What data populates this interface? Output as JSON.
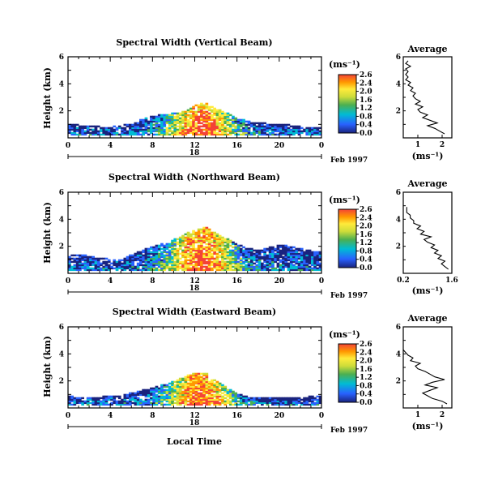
{
  "figure": {
    "xlabel": "Local Time",
    "date_label": "Feb 1997",
    "day_label": "18"
  },
  "chart_data": [
    {
      "type": "heatmap",
      "title": "Spectral Width (Vertical Beam)",
      "ylabel": "Height (km)",
      "xlim": [
        0,
        24
      ],
      "ylim": [
        0,
        6
      ],
      "xticks": [
        "0",
        "4",
        "8",
        "12",
        "16",
        "20",
        "0"
      ],
      "yticks": [
        "2",
        "4",
        "6"
      ],
      "colorbar": {
        "unit": "(ms⁻¹)",
        "min": 0.0,
        "max": 2.6,
        "ticks": [
          "0.0",
          "0.4",
          "0.8",
          "1.2",
          "1.6",
          "2.0",
          "2.4",
          "2.6"
        ]
      },
      "cloud": {
        "base_km": 0.2,
        "top_km": [
          1.0,
          0.9,
          0.9,
          0.8,
          0.8,
          0.9,
          1.0,
          1.4,
          1.6,
          1.7,
          1.8,
          2.0,
          2.4,
          2.6,
          2.1,
          1.8,
          1.4,
          1.2,
          1.1,
          1.0,
          1.0,
          0.9,
          0.8,
          0.7
        ]
      },
      "average_profile": {
        "title": "Average",
        "xlabel": "(ms⁻¹)",
        "xlim": [
          0.4,
          2.4
        ],
        "ylim": [
          0,
          6
        ],
        "xticks": [
          "1",
          "2"
        ],
        "yticks": [
          "2",
          "4",
          "6"
        ],
        "height_km": [
          0.3,
          0.5,
          0.7,
          0.9,
          1.1,
          1.3,
          1.5,
          1.7,
          1.9,
          2.1,
          2.3,
          2.5,
          2.7,
          2.9,
          3.1,
          3.3,
          3.5,
          3.7,
          3.9,
          4.1,
          4.3,
          4.5,
          4.7,
          4.9,
          5.1,
          5.3,
          5.5,
          5.7
        ],
        "width_ms": [
          2.1,
          1.9,
          1.7,
          1.4,
          1.8,
          1.5,
          1.2,
          1.4,
          1.1,
          1.0,
          1.2,
          0.9,
          1.1,
          0.9,
          0.8,
          0.9,
          0.7,
          0.8,
          0.6,
          0.7,
          0.5,
          0.6,
          0.5,
          0.6,
          0.5,
          0.7,
          0.5,
          0.6
        ]
      }
    },
    {
      "type": "heatmap",
      "title": "Spectral Width (Northward Beam)",
      "ylabel": "Height (km)",
      "xlim": [
        0,
        24
      ],
      "ylim": [
        0,
        6
      ],
      "xticks": [
        "0",
        "4",
        "8",
        "12",
        "16",
        "20",
        "0"
      ],
      "yticks": [
        "2",
        "4",
        "6"
      ],
      "colorbar": {
        "unit": "(ms⁻¹)",
        "min": 0.0,
        "max": 2.6,
        "ticks": [
          "0.0",
          "0.4",
          "0.8",
          "1.2",
          "1.6",
          "2.0",
          "2.4",
          "2.6"
        ]
      },
      "cloud": {
        "base_km": 0.2,
        "top_km": [
          1.3,
          1.4,
          1.2,
          1.1,
          1.0,
          1.0,
          1.4,
          1.7,
          2.0,
          2.2,
          2.5,
          2.9,
          3.2,
          3.4,
          2.9,
          2.5,
          2.1,
          1.8,
          1.7,
          1.9,
          2.1,
          2.0,
          1.8,
          1.6
        ]
      },
      "average_profile": {
        "title": "Average",
        "xlabel": "(ms⁻¹)",
        "xlim": [
          0.2,
          1.6
        ],
        "ylim": [
          0,
          6
        ],
        "xticks": [
          "0.2",
          "1.6"
        ],
        "yticks": [
          "2",
          "4",
          "6"
        ],
        "height_km": [
          0.3,
          0.5,
          0.7,
          0.9,
          1.1,
          1.3,
          1.5,
          1.7,
          1.9,
          2.1,
          2.3,
          2.5,
          2.7,
          2.9,
          3.1,
          3.3,
          3.5,
          3.7,
          3.9,
          4.1,
          4.3,
          4.5,
          4.7,
          4.9
        ],
        "width_ms": [
          1.5,
          1.4,
          1.3,
          1.4,
          1.2,
          1.3,
          1.1,
          1.2,
          1.0,
          1.1,
          0.9,
          0.8,
          1.0,
          0.7,
          0.8,
          0.6,
          0.7,
          0.5,
          0.5,
          0.4,
          0.4,
          0.3,
          0.3,
          0.3
        ]
      }
    },
    {
      "type": "heatmap",
      "title": "Spectral Width (Eastward Beam)",
      "ylabel": "Height (km)",
      "xlim": [
        0,
        24
      ],
      "ylim": [
        0,
        6
      ],
      "xticks": [
        "0",
        "4",
        "8",
        "12",
        "16",
        "20",
        "0"
      ],
      "yticks": [
        "2",
        "4",
        "6"
      ],
      "colorbar": {
        "unit": "(ms⁻¹)",
        "min": 0.0,
        "max": 2.6,
        "ticks": [
          "0.0",
          "0.4",
          "0.8",
          "1.2",
          "1.6",
          "2.0",
          "2.4",
          "2.6"
        ]
      },
      "cloud": {
        "base_km": 0.2,
        "top_km": [
          0.9,
          0.8,
          0.8,
          0.8,
          0.9,
          0.9,
          1.1,
          1.3,
          1.5,
          1.7,
          2.0,
          2.3,
          2.6,
          2.5,
          1.9,
          1.4,
          1.0,
          0.8,
          0.7,
          0.7,
          0.8,
          0.7,
          0.7,
          0.9
        ]
      },
      "average_profile": {
        "title": "Average",
        "xlabel": "(ms⁻¹)",
        "xlim": [
          0.4,
          2.4
        ],
        "ylim": [
          0,
          6
        ],
        "xticks": [
          "1",
          "2"
        ],
        "yticks": [
          "2",
          "4",
          "6"
        ],
        "height_km": [
          0.3,
          0.5,
          0.7,
          0.9,
          1.1,
          1.3,
          1.5,
          1.7,
          1.9,
          2.1,
          2.3,
          2.5,
          2.7,
          2.9,
          3.1,
          3.3,
          3.5,
          3.7,
          3.9,
          4.1,
          4.3
        ],
        "width_ms": [
          2.2,
          2.0,
          1.6,
          1.4,
          1.2,
          1.5,
          1.8,
          1.3,
          1.6,
          2.1,
          1.7,
          1.5,
          1.3,
          1.0,
          0.9,
          1.1,
          0.7,
          0.8,
          0.6,
          0.5,
          0.4
        ]
      }
    }
  ]
}
